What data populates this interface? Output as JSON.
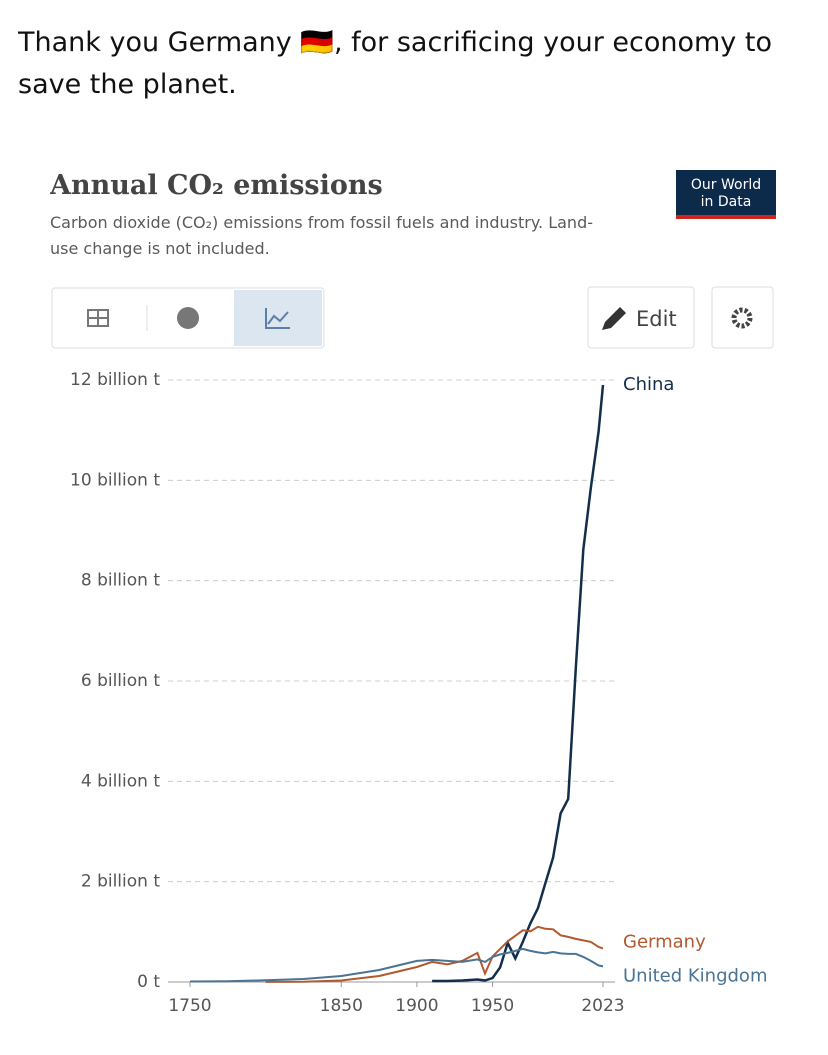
{
  "post": {
    "text": "Thank you Germany 🇩🇪, for sacrificing your economy to save the planet."
  },
  "logo": {
    "line1": "Our World",
    "line2": "in Data"
  },
  "toolbar": {
    "edit": "Edit"
  },
  "chart_data": {
    "type": "line",
    "title": "Annual CO₂ emissions",
    "subtitle": "Carbon dioxide (CO₂) emissions from fossil fuels and industry. Land-use change is not included.",
    "x": [
      1750,
      1775,
      1800,
      1825,
      1850,
      1875,
      1900,
      1910,
      1920,
      1930,
      1940,
      1945,
      1950,
      1955,
      1960,
      1965,
      1970,
      1975,
      1980,
      1985,
      1990,
      1995,
      2000,
      2005,
      2010,
      2015,
      2020,
      2023
    ],
    "series": [
      {
        "name": "China",
        "color": "#132e4b",
        "values": [
          null,
          null,
          null,
          null,
          null,
          null,
          null,
          20000000,
          20000000,
          30000000,
          50000000,
          30000000,
          80000000,
          290000000,
          780000000,
          470000000,
          800000000,
          1170000000,
          1470000000,
          1980000000,
          2480000000,
          3360000000,
          3650000000,
          6260000000,
          8620000000,
          9860000000,
          10960000000,
          11900000000
        ]
      },
      {
        "name": "Germany",
        "color": "#b3582f",
        "values": [
          null,
          null,
          2000000,
          5000000,
          30000000,
          120000000,
          300000000,
          400000000,
          350000000,
          420000000,
          580000000,
          170000000,
          510000000,
          660000000,
          810000000,
          920000000,
          1030000000,
          1010000000,
          1100000000,
          1060000000,
          1050000000,
          930000000,
          900000000,
          860000000,
          830000000,
          800000000,
          700000000,
          670000000
        ]
      },
      {
        "name": "United Kingdom",
        "color": "#4a7394",
        "values": [
          9000000,
          15000000,
          33000000,
          60000000,
          120000000,
          240000000,
          420000000,
          440000000,
          420000000,
          400000000,
          450000000,
          400000000,
          500000000,
          550000000,
          580000000,
          620000000,
          660000000,
          620000000,
          590000000,
          570000000,
          600000000,
          570000000,
          560000000,
          560000000,
          500000000,
          420000000,
          330000000,
          310000000
        ]
      }
    ],
    "xlim": [
      1750,
      2023
    ],
    "xticks": [
      1750,
      1850,
      1900,
      1950,
      2023
    ],
    "ylim": [
      0,
      12000000000
    ],
    "yticks": [
      {
        "value": 0,
        "label": "0 t"
      },
      {
        "value": 2000000000,
        "label": "2 billion t"
      },
      {
        "value": 4000000000,
        "label": "4 billion t"
      },
      {
        "value": 6000000000,
        "label": "6 billion t"
      },
      {
        "value": 8000000000,
        "label": "8 billion t"
      },
      {
        "value": 10000000000,
        "label": "10 billion t"
      },
      {
        "value": 12000000000,
        "label": "12 billion t"
      }
    ],
    "grid": true
  }
}
